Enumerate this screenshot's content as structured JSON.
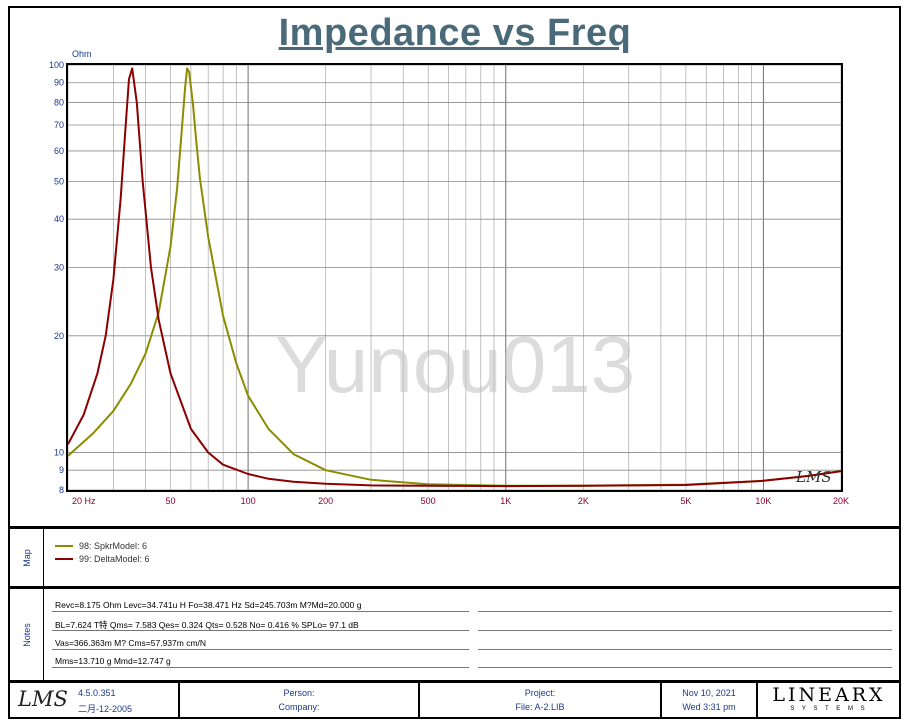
{
  "chart_data": {
    "type": "line",
    "title": "Impedance vs Freq",
    "ylabel": "Ohm",
    "x_scale": "log",
    "y_scale": "log",
    "xlim": [
      20,
      20000
    ],
    "ylim": [
      8,
      100
    ],
    "x_ticks": [
      {
        "value": 20,
        "label": "20  Hz"
      },
      {
        "value": 50,
        "label": "50"
      },
      {
        "value": 100,
        "label": "100"
      },
      {
        "value": 200,
        "label": "200"
      },
      {
        "value": 500,
        "label": "500"
      },
      {
        "value": 1000,
        "label": "1K"
      },
      {
        "value": 2000,
        "label": "2K"
      },
      {
        "value": 5000,
        "label": "5K"
      },
      {
        "value": 10000,
        "label": "10K"
      },
      {
        "value": 20000,
        "label": "20K"
      }
    ],
    "y_ticks": [
      {
        "value": 100,
        "label": "100"
      },
      {
        "value": 90,
        "label": "90"
      },
      {
        "value": 80,
        "label": "80"
      },
      {
        "value": 70,
        "label": "70"
      },
      {
        "value": 60,
        "label": "60"
      },
      {
        "value": 50,
        "label": "50"
      },
      {
        "value": 40,
        "label": "40"
      },
      {
        "value": 30,
        "label": "30"
      },
      {
        "value": 20,
        "label": "20"
      },
      {
        "value": 10,
        "label": "10"
      },
      {
        "value": 9,
        "label": "9"
      },
      {
        "value": 8,
        "label": "8"
      }
    ],
    "grid": true,
    "series": [
      {
        "name": "98: SpkrModel: 6",
        "color": "#8c8c00",
        "x": [
          20,
          25,
          30,
          35,
          40,
          45,
          50,
          53,
          55,
          57,
          58,
          59,
          61,
          63,
          65,
          70,
          80,
          90,
          100,
          120,
          150,
          200,
          300,
          500,
          1000,
          2000,
          5000,
          10000,
          15000,
          20000
        ],
        "y": [
          9.8,
          11.2,
          12.8,
          15.0,
          18.0,
          23.0,
          34.0,
          48.0,
          65.0,
          88.0,
          98.0,
          96.0,
          80.0,
          63.0,
          51.0,
          36.0,
          22.5,
          17.0,
          14.0,
          11.5,
          9.9,
          9.0,
          8.5,
          8.28,
          8.2,
          8.2,
          8.26,
          8.45,
          8.7,
          8.95
        ]
      },
      {
        "name": "99: DeltaModel: 6",
        "color": "#8b0000",
        "x": [
          20,
          23,
          26,
          28,
          30,
          32,
          33.5,
          34.5,
          35.5,
          37,
          39,
          42,
          45,
          50,
          60,
          70,
          80,
          100,
          120,
          150,
          200,
          300,
          500,
          1000,
          2000,
          5000,
          10000,
          15000,
          20000
        ],
        "y": [
          10.5,
          12.5,
          16.0,
          20.0,
          28.0,
          45.0,
          70.0,
          92.0,
          98.0,
          80.0,
          50.0,
          30.0,
          22.0,
          16.0,
          11.5,
          10.0,
          9.3,
          8.8,
          8.55,
          8.4,
          8.3,
          8.22,
          8.2,
          8.19,
          8.2,
          8.24,
          8.45,
          8.7,
          8.95
        ]
      }
    ]
  },
  "watermark": "Yunou013",
  "plot_logo": "LMS",
  "map": {
    "label": "Map"
  },
  "notes": {
    "label": "Notes",
    "lines": [
      "Revc=8.175 Ohm   Levc=34.741u H   Fo=38.471 Hz   Sd=245.703m M?Md=20.000 g",
      "BL=7.624 T特   Qms= 7.583   Qes= 0.324   Qts= 0.528   No= 0.416 %   SPLo= 97.1 dB",
      "Vas=366.363m M? Cms=57.937m cm/N",
      "Mms=13.710 g   Mmd=12.747 g"
    ]
  },
  "footer": {
    "logo": "LMS",
    "version": "4.5.0.351",
    "version_date": "二月-12-2005",
    "person_label": "Person:",
    "company_label": "Company:",
    "project_label": "Project:",
    "file_label": "File: A-2.LIB",
    "date": "Nov 10, 2021",
    "time": "Wed  3:31 pm",
    "brand_top": "LINEARX",
    "brand_bottom": "S Y S T E M S"
  }
}
